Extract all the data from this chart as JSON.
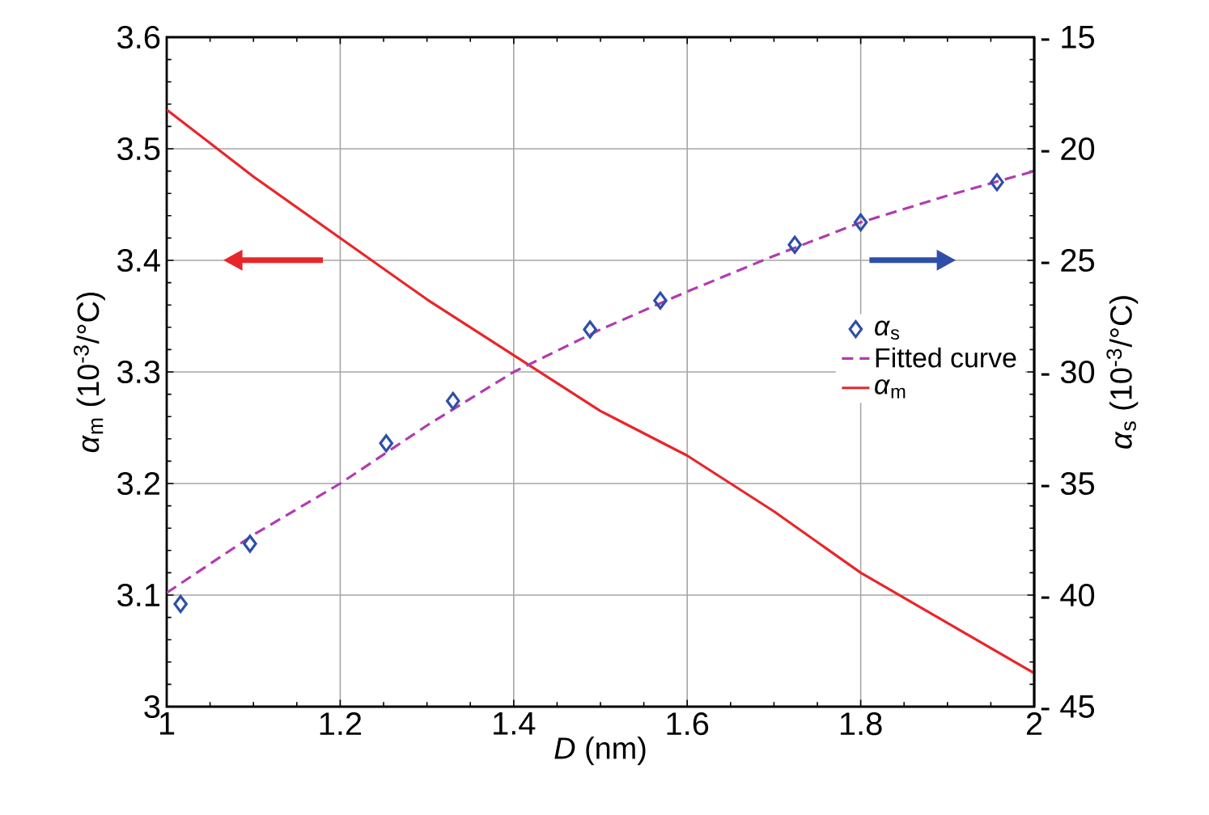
{
  "chart_data": {
    "type": "line",
    "xlabel": "*D* (nm)",
    "ylabel": "*α*$_{m}$ (10$^{-3}$/°C)",
    "y2label": "*α*$_{s}$ (10$^{-3}$/°C)",
    "xlim": [
      1,
      2
    ],
    "xticks": [
      1,
      1.2,
      1.4,
      1.6,
      1.8,
      2
    ],
    "ylim": [
      3,
      3.6
    ],
    "yticks": [
      3,
      3.1,
      3.2,
      3.3,
      3.4,
      3.5,
      3.6
    ],
    "y2lim": [
      -45,
      -15
    ],
    "y2ticks": [
      {
        "value": -45,
        "label": "- 45"
      },
      {
        "value": -40,
        "label": "- 40"
      },
      {
        "value": -35,
        "label": "- 35"
      },
      {
        "value": -30,
        "label": "- 30"
      },
      {
        "value": -25,
        "label": "- 25"
      },
      {
        "value": -20,
        "label": "- 20"
      },
      {
        "value": -15,
        "label": "- 15"
      }
    ],
    "grid": true,
    "legend": "right",
    "series": [
      {
        "name": "*α*$_{s}$",
        "type": "scatter",
        "axis": "y2",
        "marker": "diamond",
        "color": "#2e4fa8",
        "x": [
          1.016,
          1.096,
          1.253,
          1.33,
          1.488,
          1.569,
          1.724,
          1.8,
          1.957
        ],
        "values": [
          -40.4,
          -37.7,
          -33.2,
          -31.3,
          -28.1,
          -26.8,
          -24.3,
          -23.3,
          -21.5
        ]
      },
      {
        "name": "Fitted curve",
        "axis": "y2",
        "line_style": "dashed",
        "color": "#b03cb0",
        "x": [
          1,
          1.1,
          1.2,
          1.3,
          1.4,
          1.5,
          1.6,
          1.7,
          1.8,
          1.9,
          2
        ],
        "values": [
          -39.9,
          -37.3,
          -35,
          -32.4,
          -30,
          -28.1,
          -26.4,
          -24.8,
          -23.3,
          -22.1,
          -21
        ]
      },
      {
        "name": "*α*$_{m}$",
        "axis": "y",
        "line_style": "solid",
        "color": "#e8262a",
        "x": [
          1,
          1.1,
          1.2,
          1.3,
          1.4,
          1.5,
          1.6,
          1.7,
          1.8,
          1.9,
          2
        ],
        "values": [
          3.535,
          3.475,
          3.42,
          3.365,
          3.315,
          3.265,
          3.225,
          3.175,
          3.12,
          3.075,
          3.03
        ]
      }
    ]
  }
}
